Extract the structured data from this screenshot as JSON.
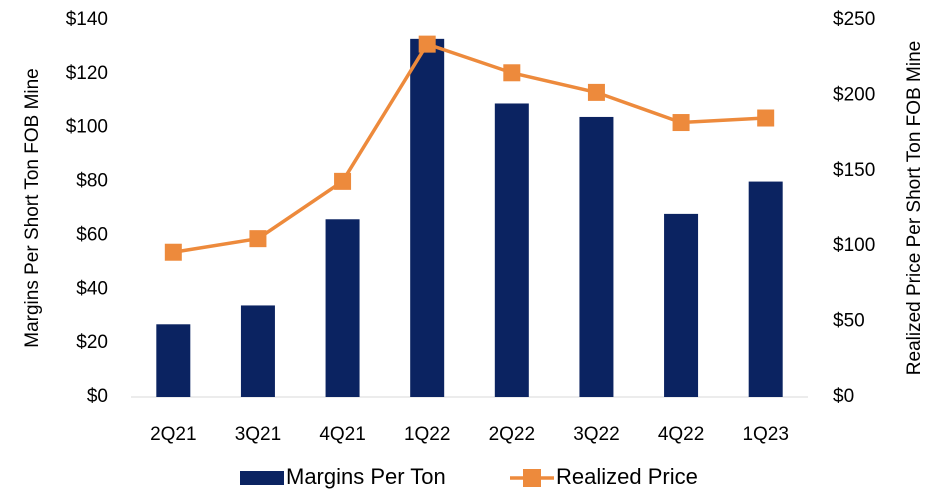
{
  "chart_data": {
    "type": "bar_line",
    "categories": [
      "2Q21",
      "3Q21",
      "4Q21",
      "1Q22",
      "2Q22",
      "3Q22",
      "4Q22",
      "1Q23"
    ],
    "series": [
      {
        "name": "Margins Per Ton",
        "color": "#0b2361",
        "type": "bar",
        "values": [
          27,
          34,
          66,
          133,
          109,
          104,
          68,
          80
        ]
      },
      {
        "name": "Realized Price",
        "color": "#ed8a3c",
        "type": "line",
        "axis": "y2",
        "values": [
          96,
          105,
          143,
          234,
          215,
          202,
          182,
          185
        ]
      }
    ],
    "ylabel": "Margins Per Short Ton FOB Mine",
    "y2label": "Realized Price Per Short Ton FOB Mine",
    "ylim": [
      0,
      140
    ],
    "yticks": [
      {
        "value": 0,
        "label": "$0"
      },
      {
        "value": 20,
        "label": "$20"
      },
      {
        "value": 40,
        "label": "$40"
      },
      {
        "value": 60,
        "label": "$60"
      },
      {
        "value": 80,
        "label": "$80"
      },
      {
        "value": 100,
        "label": "$100"
      },
      {
        "value": 120,
        "label": "$120"
      },
      {
        "value": 140,
        "label": "$140"
      }
    ],
    "y2lim": [
      0,
      250
    ],
    "y2ticks": [
      {
        "value": 0,
        "label": "$0"
      },
      {
        "value": 50,
        "label": "$50"
      },
      {
        "value": 100,
        "label": "$100"
      },
      {
        "value": 150,
        "label": "$150"
      },
      {
        "value": 200,
        "label": "$200"
      },
      {
        "value": 250,
        "label": "$250"
      }
    ],
    "grid": false,
    "legend": "bottom"
  }
}
